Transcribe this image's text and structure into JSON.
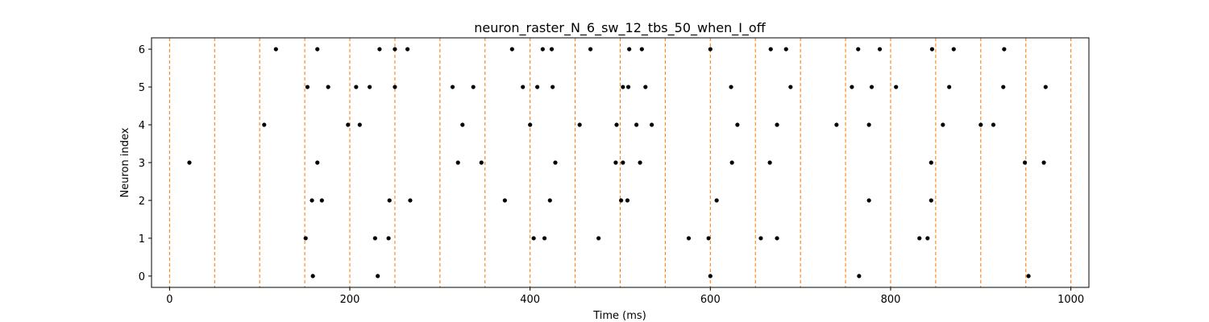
{
  "chart_data": {
    "type": "scatter",
    "title": "neuron_raster_N_6_sw_12_tbs_50_when_I_off",
    "xlabel": "Time (ms)",
    "ylabel": "Neuron index",
    "xlim": [
      -20,
      1020
    ],
    "ylim": [
      -0.3,
      6.3
    ],
    "xticks": [
      0,
      200,
      400,
      600,
      800,
      1000
    ],
    "yticks": [
      0,
      1,
      2,
      3,
      4,
      5,
      6
    ],
    "grid": false,
    "marker_color": "#000000",
    "window_line_color": "#ff7f0e",
    "window_lines_x": [
      0,
      50,
      100,
      150,
      200,
      250,
      300,
      350,
      400,
      450,
      500,
      550,
      600,
      650,
      700,
      750,
      800,
      850,
      900,
      950,
      1000
    ],
    "spikes": [
      {
        "neuron": 6,
        "times": [
          118,
          164,
          233,
          250,
          264,
          380,
          414,
          424,
          467,
          510,
          524,
          600,
          667,
          684,
          764,
          788,
          846,
          870,
          926
        ]
      },
      {
        "neuron": 5,
        "times": [
          153,
          176,
          207,
          222,
          250,
          314,
          337,
          392,
          408,
          425,
          503,
          509,
          528,
          623,
          689,
          757,
          779,
          806,
          865,
          925,
          972
        ]
      },
      {
        "neuron": 4,
        "times": [
          105,
          198,
          211,
          325,
          400,
          455,
          496,
          518,
          535,
          630,
          674,
          740,
          776,
          858,
          900,
          914
        ]
      },
      {
        "neuron": 3,
        "times": [
          22,
          164,
          320,
          346,
          428,
          495,
          503,
          522,
          624,
          666,
          845,
          949,
          970
        ]
      },
      {
        "neuron": 2,
        "times": [
          158,
          169,
          244,
          267,
          372,
          422,
          501,
          508,
          607,
          776,
          845
        ]
      },
      {
        "neuron": 1,
        "times": [
          151,
          228,
          243,
          404,
          416,
          476,
          576,
          598,
          656,
          674,
          832,
          841
        ]
      },
      {
        "neuron": 0,
        "times": [
          159,
          231,
          600,
          765,
          953
        ]
      }
    ]
  }
}
